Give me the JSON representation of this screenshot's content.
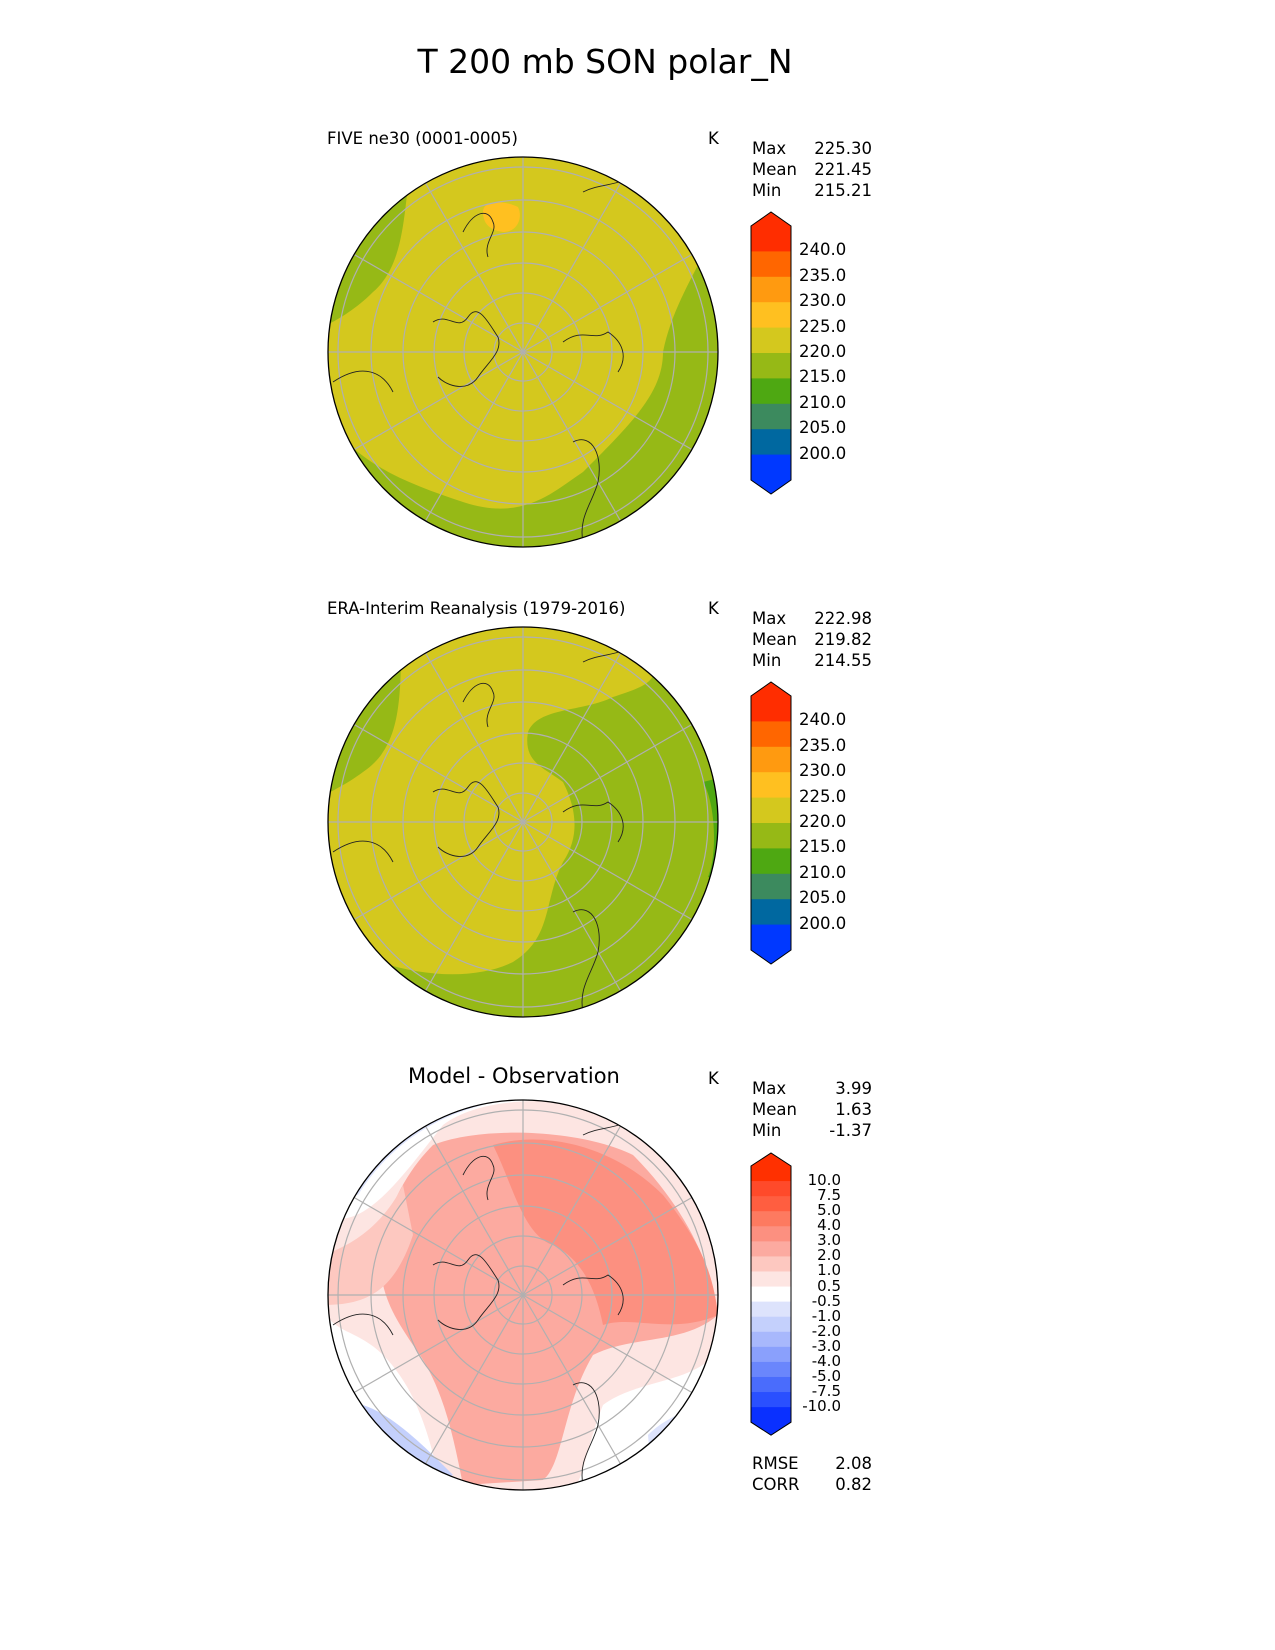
{
  "title": "T 200 mb SON polar_N",
  "panels": [
    {
      "subtitle": "FIVE ne30 (0001-0005)",
      "unit": "K",
      "stats": [
        {
          "label": "Max",
          "value": "225.30"
        },
        {
          "label": "Mean",
          "value": "221.45"
        },
        {
          "label": "Min",
          "value": "215.21"
        }
      ]
    },
    {
      "subtitle": "ERA-Interim Reanalysis (1979-2016)",
      "unit": "K",
      "stats": [
        {
          "label": "Max",
          "value": "222.98"
        },
        {
          "label": "Mean",
          "value": "219.82"
        },
        {
          "label": "Min",
          "value": "214.55"
        }
      ]
    },
    {
      "subtitle": "Model - Observation",
      "unit": "K",
      "stats": [
        {
          "label": "Max",
          "value": "3.99"
        },
        {
          "label": "Mean",
          "value": "1.63"
        },
        {
          "label": "Min",
          "value": "-1.37"
        }
      ],
      "metrics": [
        {
          "label": "RMSE",
          "value": "2.08"
        },
        {
          "label": "CORR",
          "value": "0.82"
        }
      ]
    }
  ],
  "chart_data": {
    "type": "heatmap",
    "projection": "north polar stereographic",
    "colorbar_main": {
      "levels": [
        "240.0",
        "235.0",
        "230.0",
        "225.0",
        "220.0",
        "215.0",
        "210.0",
        "205.0",
        "200.0"
      ],
      "colors": [
        "#ff2d00",
        "#ff6600",
        "#ff9a10",
        "#ffc020",
        "#d4c81e",
        "#96b916",
        "#4ea812",
        "#3c8a5e",
        "#0068a0",
        "#0038ff"
      ]
    },
    "colorbar_diff": {
      "levels": [
        "10.0",
        "7.5",
        "5.0",
        "4.0",
        "3.0",
        "2.0",
        "1.0",
        "0.5",
        "-0.5",
        "-1.0",
        "-2.0",
        "-3.0",
        "-4.0",
        "-5.0",
        "-7.5",
        "-10.0"
      ],
      "colors": [
        "#ff3000",
        "#ff4a2a",
        "#ff5e40",
        "#fd7a60",
        "#fc9080",
        "#fcaaa0",
        "#fdc8c0",
        "#fde5e2",
        "#ffffff",
        "#dde3fc",
        "#c4d0fc",
        "#a8b8fc",
        "#8aa0fc",
        "#6a86fc",
        "#4a6cfc",
        "#2a50ff",
        "#0a30ff"
      ]
    }
  }
}
